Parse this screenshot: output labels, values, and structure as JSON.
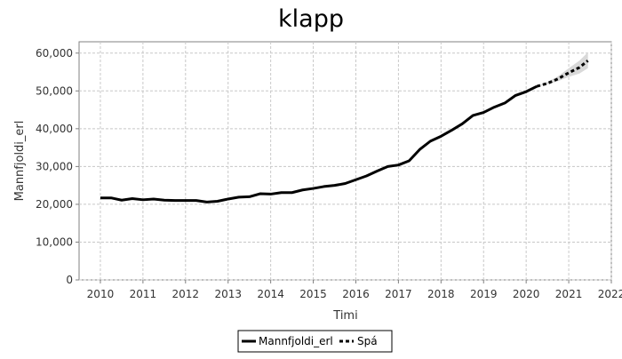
{
  "chart_data": {
    "type": "line",
    "title": "klapp",
    "xlabel": "Timi",
    "ylabel": "Mannfjoldi_erl",
    "xlim": [
      2009.5,
      2022
    ],
    "ylim": [
      0,
      63000
    ],
    "x_ticks": [
      2010,
      2011,
      2012,
      2013,
      2014,
      2015,
      2016,
      2017,
      2018,
      2019,
      2020,
      2021,
      2022
    ],
    "y_ticks": [
      0,
      10000,
      20000,
      30000,
      40000,
      50000,
      60000
    ],
    "y_tick_labels": [
      "0",
      "10,000",
      "20,000",
      "30,000",
      "40,000",
      "50,000",
      "60,000"
    ],
    "grid": true,
    "legend_position": "bottom",
    "series": [
      {
        "name": "Mannfjoldi_erl",
        "style": "solid",
        "color": "#000000",
        "x": [
          2010.0,
          2010.25,
          2010.5,
          2010.75,
          2011.0,
          2011.25,
          2011.5,
          2011.75,
          2012.0,
          2012.25,
          2012.5,
          2012.75,
          2013.0,
          2013.25,
          2013.5,
          2013.75,
          2014.0,
          2014.25,
          2014.5,
          2014.75,
          2015.0,
          2015.25,
          2015.5,
          2015.75,
          2016.0,
          2016.25,
          2016.5,
          2016.75,
          2017.0,
          2017.25,
          2017.5,
          2017.75,
          2018.0,
          2018.25,
          2018.5,
          2018.75,
          2019.0,
          2019.25,
          2019.5,
          2019.75,
          2020.0,
          2020.25
        ],
        "y": [
          21700,
          21700,
          21100,
          21500,
          21200,
          21400,
          21100,
          21000,
          21000,
          21000,
          20600,
          20800,
          21400,
          21900,
          22000,
          22800,
          22700,
          23100,
          23100,
          23800,
          24200,
          24700,
          25000,
          25500,
          26500,
          27500,
          28800,
          30000,
          30400,
          31500,
          34500,
          36700,
          38000,
          39600,
          41300,
          43500,
          44300,
          45700,
          46800,
          48800,
          49800,
          51200
        ]
      },
      {
        "name": "Spá",
        "style": "dashed",
        "color": "#000000",
        "x": [
          2020.25,
          2020.5,
          2020.75,
          2021.0,
          2021.25,
          2021.45
        ],
        "y": [
          51200,
          52000,
          53200,
          54800,
          56200,
          58000
        ],
        "band_lower": [
          51200,
          51700,
          52600,
          53700,
          54600,
          56000
        ],
        "band_upper": [
          51200,
          52400,
          53900,
          56000,
          58000,
          60200
        ],
        "band_color": "#d9d9d9"
      }
    ]
  }
}
